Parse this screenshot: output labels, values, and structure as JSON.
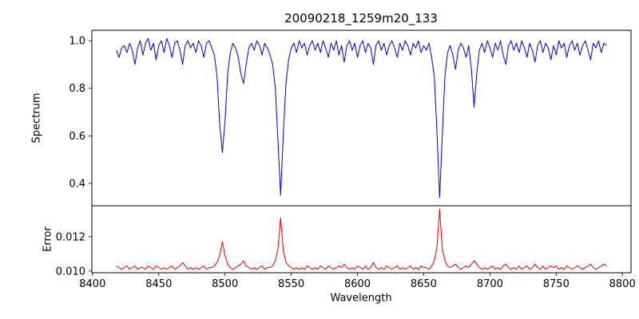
{
  "figure": {
    "background": "#ffffff",
    "axis_color": "#000000"
  },
  "chart_data": {
    "type": "line",
    "title": "20090218_1259m20_133",
    "xlabel": "Wavelength",
    "legend": "none",
    "grid": false,
    "xlim": [
      8399.5,
      8806.5
    ],
    "xticks": [
      8400,
      8450,
      8500,
      8550,
      8600,
      8650,
      8700,
      8750,
      8800
    ],
    "xtick_labels": [
      "8400",
      "8450",
      "8500",
      "8550",
      "8600",
      "8650",
      "8700",
      "8750",
      "8800"
    ],
    "panels": [
      {
        "ylabel": "Spectrum",
        "ylim": [
          0.306,
          1.044
        ],
        "yticks": [
          0.4,
          0.6,
          0.8,
          1.0
        ],
        "ytick_labels": [
          "0.4",
          "0.6",
          "0.8",
          "1.0"
        ],
        "absorption_line_centers": [
          8498,
          8542,
          8662
        ],
        "series": [
          {
            "name": "spectrum",
            "color": "#0000dd",
            "x_start": 8418,
            "x_step": 2,
            "y": [
              0.96,
              0.93,
              0.97,
              0.98,
              0.95,
              0.99,
              0.96,
              0.9,
              0.97,
              1.0,
              0.94,
              0.99,
              1.01,
              0.96,
              0.99,
              0.92,
              0.98,
              1.0,
              0.95,
              1.01,
              0.98,
              0.93,
              0.99,
              1.0,
              0.96,
              0.9,
              0.98,
              1.0,
              0.97,
              0.99,
              0.95,
              1.0,
              0.98,
              0.93,
              0.99,
              1.0,
              0.97,
              0.94,
              0.85,
              0.65,
              0.53,
              0.66,
              0.86,
              0.95,
              0.99,
              0.97,
              0.93,
              0.86,
              0.82,
              0.9,
              0.97,
              0.99,
              0.96,
              1.0,
              0.98,
              0.94,
              0.99,
              0.97,
              0.94,
              0.9,
              0.8,
              0.58,
              0.35,
              0.6,
              0.82,
              0.92,
              0.97,
              0.99,
              0.95,
              1.0,
              0.97,
              0.99,
              0.94,
              0.98,
              1.0,
              0.96,
              0.99,
              0.95,
              1.0,
              0.97,
              0.93,
              0.99,
              0.96,
              1.0,
              0.94,
              0.98,
              0.91,
              0.98,
              1.0,
              0.96,
              0.99,
              0.93,
              0.98,
              1.0,
              0.95,
              0.99,
              0.97,
              0.9,
              0.98,
              1.0,
              0.96,
              0.99,
              0.94,
              0.98,
              1.0,
              0.97,
              0.93,
              0.99,
              0.96,
              1.0,
              0.98,
              0.94,
              0.99,
              0.97,
              1.0,
              0.95,
              0.98,
              0.96,
              0.99,
              0.93,
              0.85,
              0.62,
              0.34,
              0.6,
              0.85,
              0.95,
              0.98,
              0.94,
              0.88,
              0.96,
              0.99,
              0.97,
              0.93,
              0.98,
              0.88,
              0.72,
              0.86,
              0.96,
              0.99,
              0.95,
              1.0,
              0.97,
              0.93,
              0.99,
              0.96,
              1.0,
              0.94,
              0.9,
              0.98,
              1.0,
              0.96,
              0.99,
              0.95,
              1.0,
              0.97,
              0.93,
              0.99,
              0.96,
              0.91,
              0.98,
              1.0,
              0.95,
              0.99,
              0.97,
              0.92,
              0.98,
              0.94,
              1.0,
              0.97,
              0.99,
              0.93,
              0.98,
              1.0,
              0.96,
              0.99,
              0.94,
              0.98,
              1.0,
              0.96,
              0.92,
              0.99,
              0.97,
              1.0,
              0.95,
              0.99,
              0.98
            ]
          }
        ]
      },
      {
        "ylabel": "Error",
        "ylim": [
          0.0099,
          0.0138
        ],
        "yticks": [
          0.01,
          0.012
        ],
        "ytick_labels": [
          "0.010",
          "0.012"
        ],
        "series": [
          {
            "name": "error",
            "color": "#ee0000",
            "x_start": 8418,
            "x_step": 2,
            "y": [
              0.0103,
              0.0102,
              0.0101,
              0.0102,
              0.0103,
              0.0101,
              0.0102,
              0.0103,
              0.0101,
              0.0102,
              0.0102,
              0.0101,
              0.0103,
              0.0102,
              0.0101,
              0.0103,
              0.0102,
              0.0101,
              0.0102,
              0.0101,
              0.0102,
              0.0103,
              0.0101,
              0.0102,
              0.0103,
              0.0105,
              0.0103,
              0.0101,
              0.0102,
              0.0101,
              0.0102,
              0.0101,
              0.0102,
              0.0103,
              0.0101,
              0.0102,
              0.0102,
              0.0103,
              0.0105,
              0.0109,
              0.0117,
              0.0109,
              0.0104,
              0.0102,
              0.0101,
              0.0102,
              0.0103,
              0.0104,
              0.0106,
              0.0103,
              0.0102,
              0.0101,
              0.0102,
              0.0101,
              0.0102,
              0.0103,
              0.0101,
              0.0102,
              0.0102,
              0.0103,
              0.0106,
              0.0113,
              0.0131,
              0.0112,
              0.0105,
              0.0103,
              0.0102,
              0.0101,
              0.0102,
              0.0101,
              0.0102,
              0.0101,
              0.0103,
              0.0102,
              0.0101,
              0.0102,
              0.0101,
              0.0103,
              0.0102,
              0.0101,
              0.0103,
              0.0102,
              0.0101,
              0.0102,
              0.0103,
              0.0102,
              0.0104,
              0.0102,
              0.0101,
              0.0102,
              0.0101,
              0.0103,
              0.0102,
              0.0101,
              0.0103,
              0.0101,
              0.0102,
              0.0105,
              0.0102,
              0.0101,
              0.0102,
              0.0101,
              0.0103,
              0.0102,
              0.0101,
              0.0102,
              0.0103,
              0.0101,
              0.0102,
              0.0101,
              0.0102,
              0.0103,
              0.0101,
              0.0102,
              0.0101,
              0.0103,
              0.0102,
              0.0102,
              0.0101,
              0.0103,
              0.0106,
              0.0114,
              0.0136,
              0.0113,
              0.0106,
              0.0103,
              0.0102,
              0.0103,
              0.0104,
              0.0102,
              0.0101,
              0.0102,
              0.0103,
              0.0102,
              0.0104,
              0.0106,
              0.0104,
              0.0102,
              0.0101,
              0.0102,
              0.0101,
              0.0102,
              0.0103,
              0.0101,
              0.0102,
              0.0101,
              0.0103,
              0.0104,
              0.0102,
              0.0101,
              0.0102,
              0.0101,
              0.0103,
              0.0101,
              0.0102,
              0.0103,
              0.0101,
              0.0102,
              0.0104,
              0.0102,
              0.0101,
              0.0103,
              0.0101,
              0.0102,
              0.0103,
              0.0102,
              0.0103,
              0.0101,
              0.0102,
              0.0101,
              0.0103,
              0.0102,
              0.0101,
              0.0102,
              0.0103,
              0.0102,
              0.0101,
              0.0102,
              0.0103,
              0.0104,
              0.0102,
              0.0101,
              0.0102,
              0.0103,
              0.0104,
              0.0103
            ]
          }
        ]
      }
    ]
  }
}
